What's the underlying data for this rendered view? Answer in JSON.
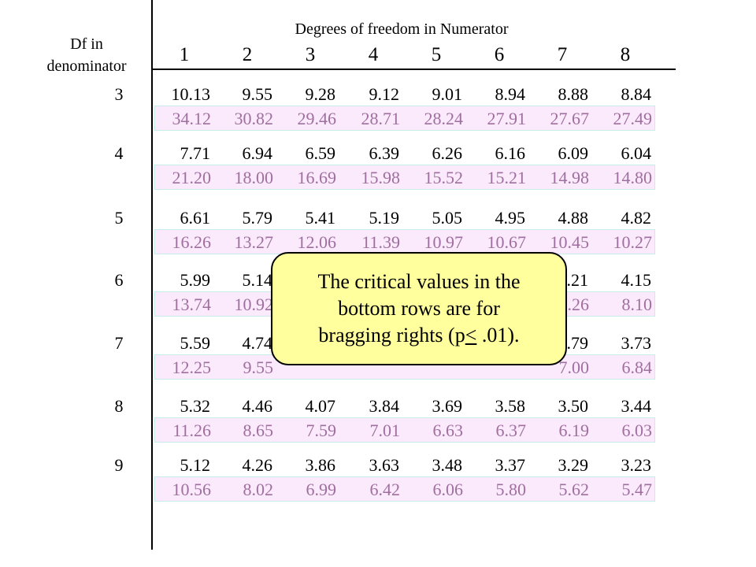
{
  "table": {
    "column_title": "Degrees of freedom in Numerator",
    "row_title_line1": "Df in",
    "row_title_line2": "denominator",
    "columns": [
      "1",
      "2",
      "3",
      "4",
      "5",
      "6",
      "7",
      "8"
    ],
    "rows": [
      {
        "df": "3",
        "p05": [
          "10.13",
          "9.55",
          "9.28",
          "9.12",
          "9.01",
          "8.94",
          "8.88",
          "8.84"
        ],
        "p01": [
          "34.12",
          "30.82",
          "29.46",
          "28.71",
          "28.24",
          "27.91",
          "27.67",
          "27.49"
        ]
      },
      {
        "df": "4",
        "p05": [
          "7.71",
          "6.94",
          "6.59",
          "6.39",
          "6.26",
          "6.16",
          "6.09",
          "6.04"
        ],
        "p01": [
          "21.20",
          "18.00",
          "16.69",
          "15.98",
          "15.52",
          "15.21",
          "14.98",
          "14.80"
        ]
      },
      {
        "df": "5",
        "p05": [
          "6.61",
          "5.79",
          "5.41",
          "5.19",
          "5.05",
          "4.95",
          "4.88",
          "4.82"
        ],
        "p01": [
          "16.26",
          "13.27",
          "12.06",
          "11.39",
          "10.97",
          "10.67",
          "10.45",
          "10.27"
        ]
      },
      {
        "df": "6",
        "p05": [
          "5.99",
          "5.14",
          "",
          "",
          "",
          "",
          "4.21",
          "4.15"
        ],
        "p01": [
          "13.74",
          "10.92",
          "",
          "",
          "",
          "",
          "8.26",
          "8.10"
        ]
      },
      {
        "df": "7",
        "p05": [
          "5.59",
          "4.74",
          "",
          "",
          "",
          "",
          "3.79",
          "3.73"
        ],
        "p01": [
          "12.25",
          "9.55",
          "",
          "",
          "",
          "",
          "7.00",
          "6.84"
        ]
      },
      {
        "df": "8",
        "p05": [
          "5.32",
          "4.46",
          "4.07",
          "3.84",
          "3.69",
          "3.58",
          "3.50",
          "3.44"
        ],
        "p01": [
          "11.26",
          "8.65",
          "7.59",
          "7.01",
          "6.63",
          "6.37",
          "6.19",
          "6.03"
        ]
      },
      {
        "df": "9",
        "p05": [
          "5.12",
          "4.26",
          "3.86",
          "3.63",
          "3.48",
          "3.37",
          "3.29",
          "3.23"
        ],
        "p01": [
          "10.56",
          "8.02",
          "6.99",
          "6.42",
          "6.06",
          "5.80",
          "5.62",
          "5.47"
        ]
      }
    ]
  },
  "callout": {
    "line1": "The critical values in the",
    "line2": "bottom rows are for",
    "line3_prefix": "bragging rights (p",
    "line3_symbol": "<",
    "line3_suffix": " .01)."
  },
  "colors": {
    "p01_text": "#9f6f9f",
    "p01_background": "#fbe9fc",
    "callout_background": "#ffff9e"
  }
}
